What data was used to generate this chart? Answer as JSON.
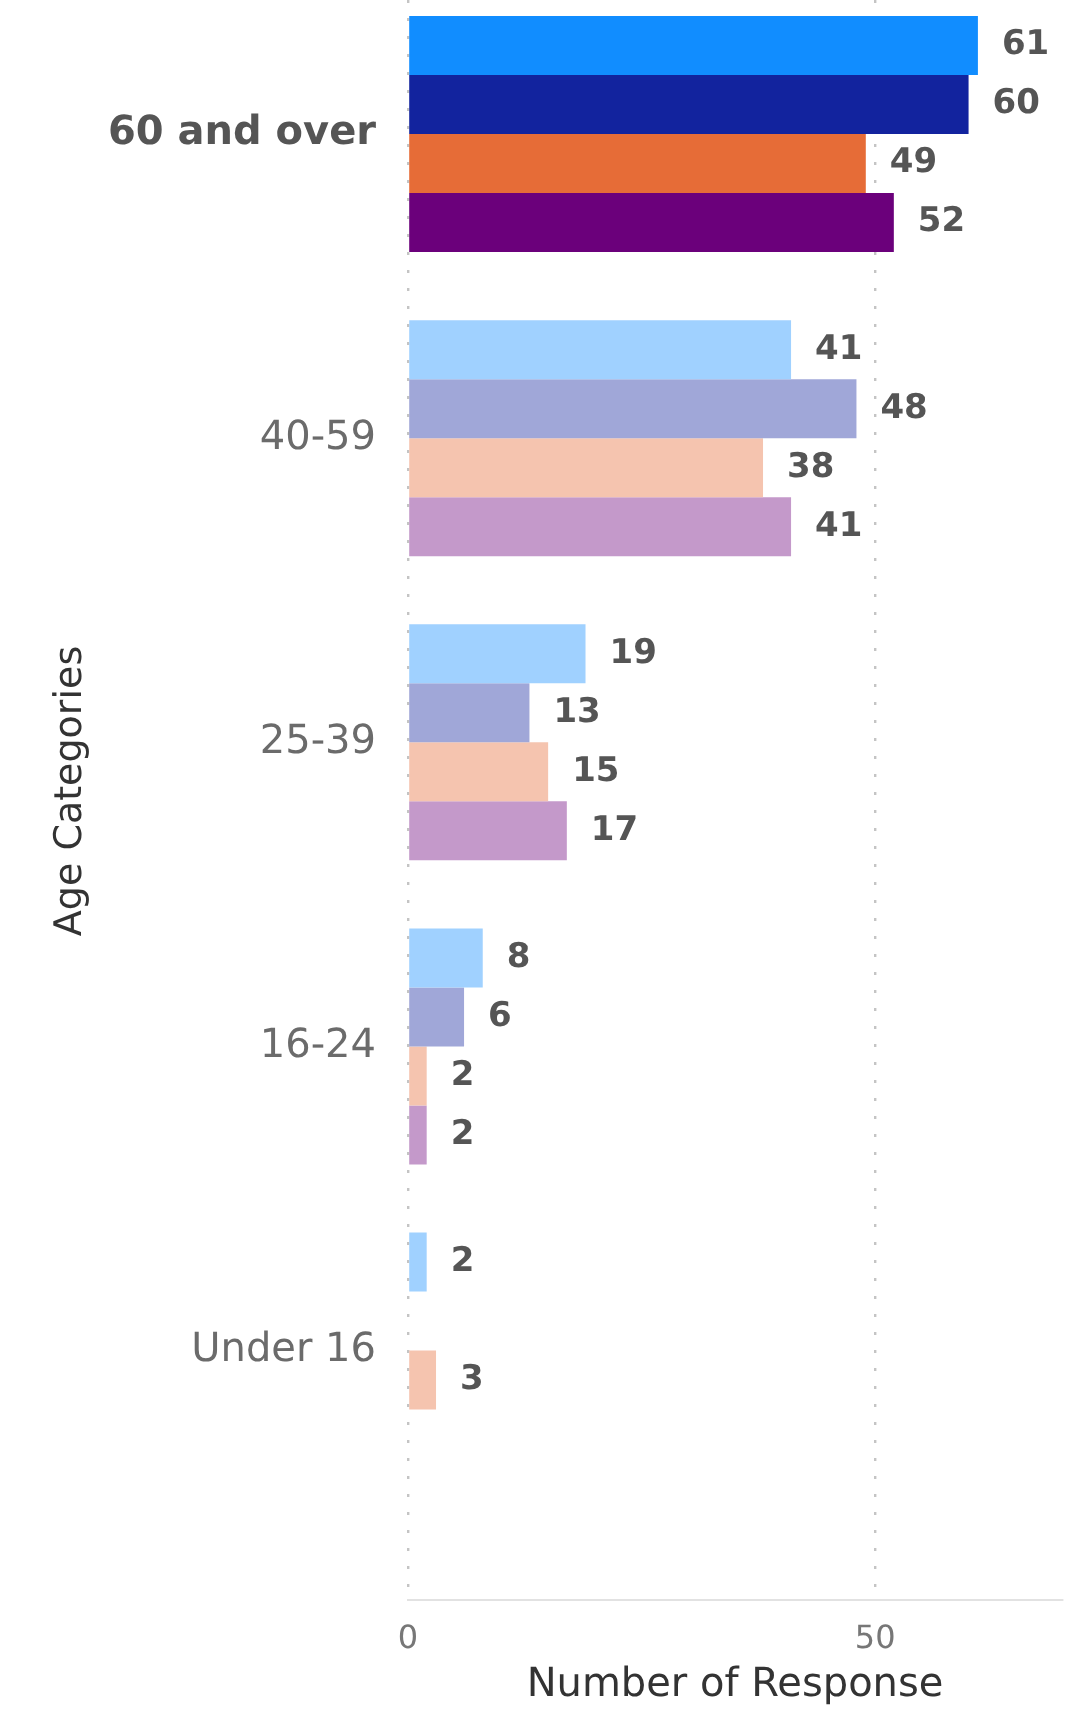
{
  "chart_data": {
    "type": "bar",
    "orientation": "horizontal",
    "xlabel": "Number of Response",
    "ylabel": "Age Categories",
    "categories": [
      "60 and over",
      "40-59",
      "25-39",
      "16-24",
      "Under 16"
    ],
    "series": [
      {
        "colors": [
          "#118dff",
          "#a0d1ff",
          "#a0d1ff",
          "#a0d1ff",
          "#a0d1ff"
        ],
        "values": [
          61,
          41,
          19,
          8,
          2
        ]
      },
      {
        "colors": [
          "#12239e",
          "#a0a7d8",
          "#a0a7d8",
          "#a0a7d8",
          "#a0a7d8"
        ],
        "values": [
          60,
          48,
          13,
          6,
          null
        ]
      },
      {
        "colors": [
          "#e66c37",
          "#f5c4af",
          "#f5c4af",
          "#f5c4af",
          "#f5c4af"
        ],
        "values": [
          49,
          38,
          15,
          2,
          3
        ]
      },
      {
        "colors": [
          "#6b007b",
          "#c499ca",
          "#c499ca",
          "#c499ca",
          "#c499ca"
        ],
        "values": [
          52,
          41,
          17,
          2,
          null
        ]
      }
    ],
    "xlim": [
      0,
      70
    ],
    "xticks": [
      0,
      50
    ],
    "grid": "x",
    "legend": false,
    "data_labels": true
  }
}
